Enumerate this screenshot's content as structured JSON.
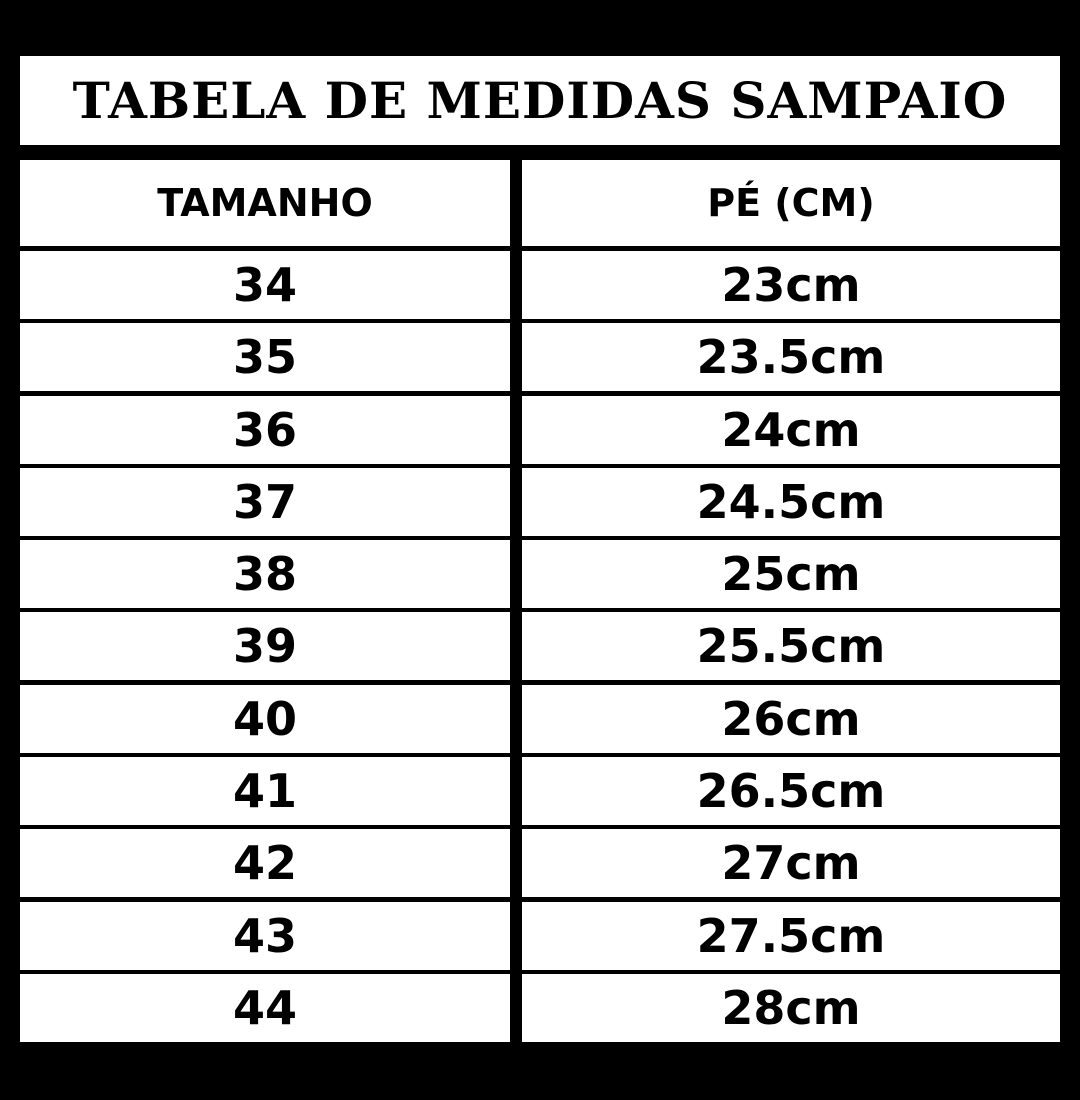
{
  "title": "TABELA DE MEDIDAS SAMPAIO",
  "columns": [
    "TAMANHO",
    "PÉ (CM)"
  ],
  "rows": [
    [
      "34",
      "23cm"
    ],
    [
      "35",
      "23.5cm"
    ],
    [
      "36",
      "24cm"
    ],
    [
      "37",
      "24.5cm"
    ],
    [
      "38",
      "25cm"
    ],
    [
      "39",
      "25.5cm"
    ],
    [
      "40",
      "26cm"
    ],
    [
      "41",
      "26.5cm"
    ],
    [
      "42",
      "27cm"
    ],
    [
      "43",
      "27.5cm"
    ],
    [
      "44",
      "28cm"
    ]
  ],
  "colors": {
    "background": "#000000",
    "cell": "#ffffff",
    "text": "#000000"
  }
}
